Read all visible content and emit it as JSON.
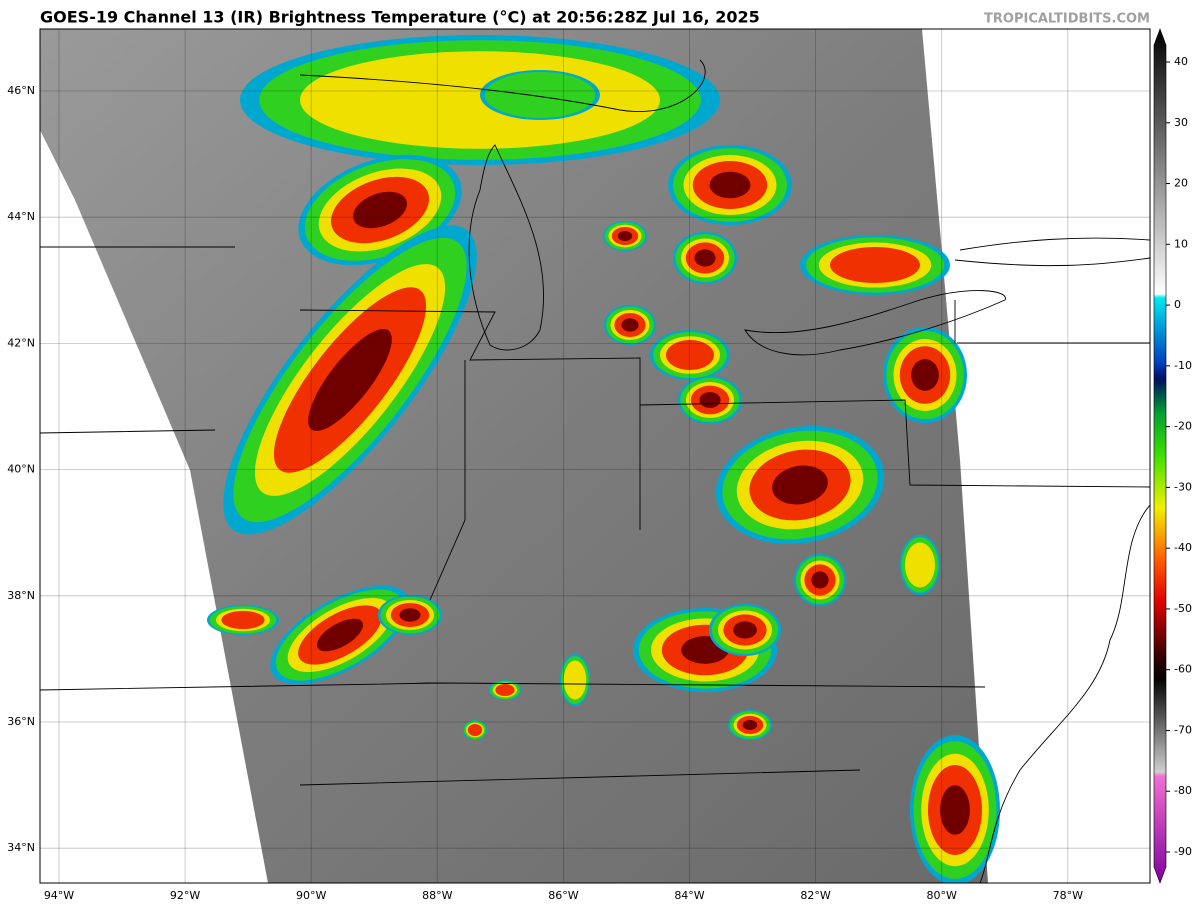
{
  "header": {
    "title": "GOES-19 Channel 13 (IR) Brightness Temperature (°C) at 20:56:28Z Jul 16, 2025",
    "credit": "TROPICALTIDBITS.COM"
  },
  "map": {
    "lat_labels": [
      "46°N",
      "44°N",
      "42°N",
      "40°N",
      "38°N",
      "36°N",
      "34°N"
    ],
    "lon_labels": [
      "94°W",
      "92°W",
      "90°W",
      "88°W",
      "86°W",
      "84°W",
      "82°W",
      "80°W",
      "78°W"
    ]
  },
  "colorbar": {
    "ticks": [
      40,
      30,
      20,
      10,
      0,
      -10,
      -20,
      -30,
      -40,
      -50,
      -60,
      -70,
      -80,
      -90
    ]
  }
}
